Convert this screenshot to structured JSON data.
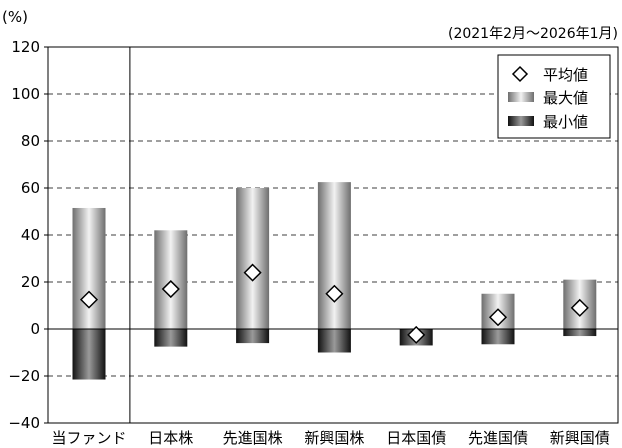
{
  "chart_data": {
    "type": "bar",
    "title": "",
    "unit_label": "(%)",
    "period_label": "(2021年2月～2026年1月)",
    "xlabel": "",
    "ylabel": "",
    "ylim": [
      -40,
      120
    ],
    "yticks": [
      -40,
      -20,
      0,
      20,
      40,
      60,
      80,
      100,
      120
    ],
    "grid": true,
    "legend_position": "top-right",
    "categories": [
      "当ファンド",
      "日本株",
      "先進国株",
      "新興国株",
      "日本国債",
      "先進国債",
      "新興国債"
    ],
    "series": [
      {
        "name": "平均値",
        "type": "marker",
        "values": [
          12.5,
          17,
          24,
          15,
          -2.5,
          5,
          9
        ]
      },
      {
        "name": "最大値",
        "type": "range-top",
        "values": [
          51.5,
          42,
          60,
          62.5,
          0,
          15,
          21
        ]
      },
      {
        "name": "最小値",
        "type": "range-bottom",
        "values": [
          -21.5,
          -7.5,
          -6,
          -10,
          -7,
          -6.5,
          -3
        ]
      }
    ]
  }
}
